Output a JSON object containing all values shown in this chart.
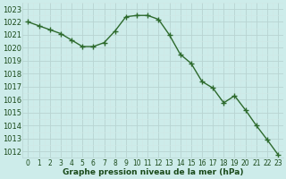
{
  "x": [
    0,
    1,
    2,
    3,
    4,
    5,
    6,
    7,
    8,
    9,
    10,
    11,
    12,
    13,
    14,
    15,
    16,
    17,
    18,
    19,
    20,
    21,
    22,
    23
  ],
  "y": [
    1022.0,
    1021.7,
    1021.4,
    1021.1,
    1020.6,
    1020.1,
    1020.1,
    1020.4,
    1021.3,
    1022.4,
    1022.5,
    1022.5,
    1022.2,
    1021.0,
    1019.5,
    1018.8,
    1017.4,
    1016.9,
    1015.75,
    1016.3,
    1015.2,
    1014.0,
    1012.9,
    1011.75
  ],
  "ylim_min": 1011.5,
  "ylim_max": 1023.5,
  "xlim_min": -0.5,
  "xlim_max": 23.5,
  "yticks": [
    1012,
    1013,
    1014,
    1015,
    1016,
    1017,
    1018,
    1019,
    1020,
    1021,
    1022,
    1023
  ],
  "xticks": [
    0,
    1,
    2,
    3,
    4,
    5,
    6,
    7,
    8,
    9,
    10,
    11,
    12,
    13,
    14,
    15,
    16,
    17,
    18,
    19,
    20,
    21,
    22,
    23
  ],
  "line_color": "#2d6a2d",
  "marker_color": "#2d6a2d",
  "bg_color": "#cdecea",
  "grid_major_color": "#b8d4d2",
  "grid_minor_color": "#d0e8e6",
  "xlabel": "Graphe pression niveau de la mer (hPa)",
  "xlabel_color": "#1a4a1a",
  "tick_color": "#1a4a1a",
  "ytick_fontsize": 6,
  "xtick_fontsize": 5.5,
  "xlabel_fontsize": 6.5,
  "marker": "+",
  "markersize": 4,
  "linewidth": 1.0
}
